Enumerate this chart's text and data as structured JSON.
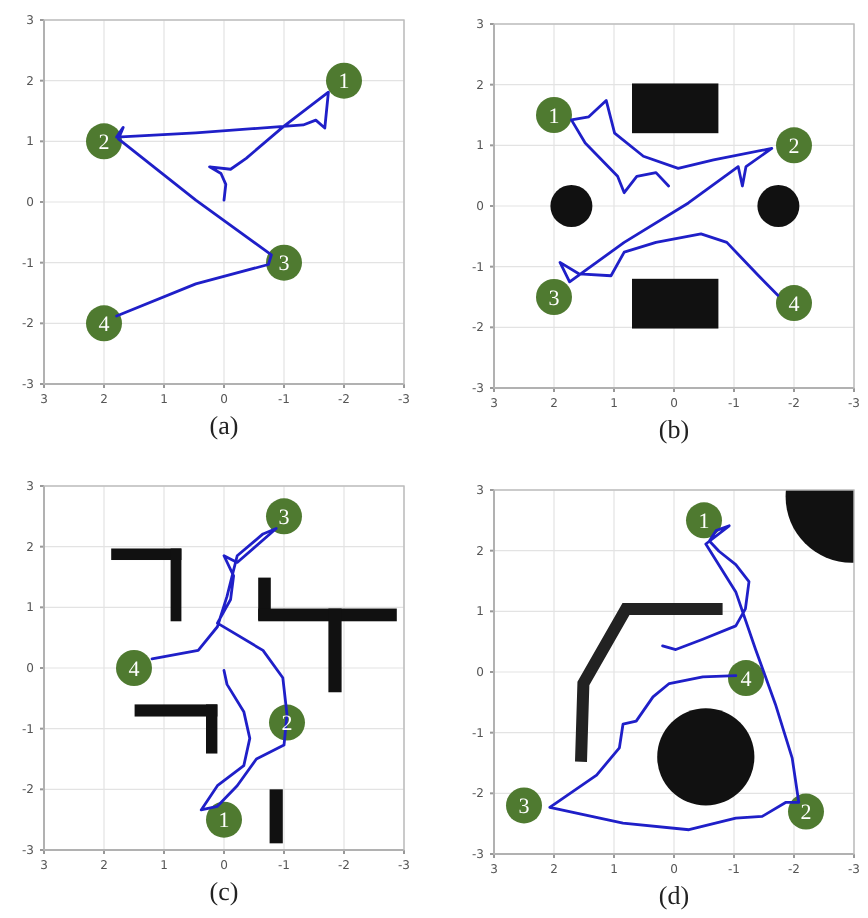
{
  "chart_data": [
    {
      "type": "line",
      "xlabel": "(a)",
      "xlim": [
        3,
        -3
      ],
      "ylim": [
        -3,
        3
      ],
      "xticks": [
        3,
        2,
        1,
        0,
        -1,
        -2,
        -3
      ],
      "yticks": [
        -3,
        -2,
        -1,
        0,
        1,
        2,
        3
      ],
      "grid": true,
      "series": [
        {
          "color": "#1f1fc8",
          "x": [
            0,
            -0.03,
            0.05,
            0.24,
            -0.11,
            -0.37,
            -1.0,
            -1.74,
            -1.68,
            -1.53,
            -1.32,
            0.47,
            1.79,
            1.68,
            1.76,
            0.47,
            -0.79,
            -0.74,
            0.47,
            1.79
          ],
          "values": [
            0.03,
            0.29,
            0.47,
            0.58,
            0.54,
            0.72,
            1.25,
            1.81,
            1.22,
            1.35,
            1.27,
            1.14,
            1.07,
            1.23,
            1.04,
            0.03,
            -0.87,
            -1.03,
            -1.35,
            -1.88
          ]
        },
        {
          "type": "scatter",
          "marker": "circle",
          "color": "#4f7a30",
          "x": [
            -2,
            2,
            -1,
            2
          ],
          "values": [
            2,
            1,
            -1,
            -2
          ]
        }
      ],
      "annotations": [
        {
          "text": "1",
          "x": -2,
          "y": 2
        },
        {
          "text": "2",
          "x": 2,
          "y": 1
        },
        {
          "text": "3",
          "x": -1,
          "y": -1
        },
        {
          "text": "4",
          "x": 2,
          "y": -2
        }
      ]
    },
    {
      "type": "line",
      "xlabel": "(b)",
      "xlim": [
        3,
        -3
      ],
      "ylim": [
        -3,
        3
      ],
      "xticks": [
        3,
        2,
        1,
        0,
        -1,
        -2,
        -3
      ],
      "yticks": [
        -3,
        -2,
        -1,
        0,
        1,
        2,
        3
      ],
      "grid": true,
      "series": [
        {
          "color": "#1f1fc8",
          "x": [
            0.09,
            0.3,
            0.62,
            0.83,
            0.94,
            1.48,
            1.71,
            1.42,
            1.13,
            0.99,
            0.51,
            -0.07,
            -0.66,
            -1.63,
            -1.2,
            -1.14,
            -1.07,
            -0.24,
            0.83,
            1.74,
            1.9,
            1.58,
            1.05,
            0.83,
            0.3,
            -0.45,
            -0.88,
            -1.41,
            -1.73
          ],
          "values": [
            0.33,
            0.55,
            0.49,
            0.22,
            0.49,
            1.04,
            1.42,
            1.47,
            1.74,
            1.2,
            0.82,
            0.62,
            0.76,
            0.95,
            0.65,
            0.33,
            0.65,
            0.05,
            -0.6,
            -1.25,
            -0.93,
            -1.12,
            -1.15,
            -0.76,
            -0.6,
            -0.46,
            -0.6,
            -1.15,
            -1.47
          ]
        },
        {
          "type": "scatter",
          "marker": "circle",
          "color": "#4f7a30",
          "x": [
            2,
            -2,
            2,
            -2
          ],
          "values": [
            1.5,
            1,
            -1.5,
            -1.6
          ]
        }
      ],
      "annotations": [
        {
          "text": "1",
          "x": 2,
          "y": 1.5
        },
        {
          "text": "2",
          "x": -2,
          "y": 1
        },
        {
          "text": "3",
          "x": 2,
          "y": -1.5
        },
        {
          "text": "4",
          "x": -2,
          "y": -1.6
        }
      ]
    },
    {
      "type": "line",
      "xlabel": "(c)",
      "xlim": [
        3,
        -3
      ],
      "ylim": [
        -3,
        3
      ],
      "xticks": [
        3,
        2,
        1,
        0,
        -1,
        -2,
        -3
      ],
      "yticks": [
        -3,
        -2,
        -1,
        0,
        1,
        2,
        3
      ],
      "grid": true,
      "series": [
        {
          "color": "#1f1fc8",
          "x": [
            0,
            -0.05,
            -0.33,
            -0.43,
            -0.33,
            0.11,
            0.38,
            0.11,
            -0.22,
            -0.54,
            -1.0,
            -1.05,
            -0.98,
            -0.65,
            0.11,
            -0.11,
            -0.16,
            0,
            -0.22,
            -0.87,
            -0.65,
            -0.22,
            -0.05,
            0.11,
            0.43,
            1.2
          ],
          "values": [
            -0.04,
            -0.27,
            -0.72,
            -1.16,
            -1.61,
            -1.94,
            -2.34,
            -2.28,
            -1.94,
            -1.5,
            -1.27,
            -0.77,
            -0.16,
            0.29,
            0.74,
            1.13,
            1.52,
            1.85,
            1.74,
            2.3,
            2.21,
            1.85,
            1.18,
            0.68,
            0.29,
            0.15
          ]
        },
        {
          "type": "scatter",
          "marker": "circle",
          "color": "#4f7a30",
          "x": [
            0,
            -1.05,
            -1,
            1.5
          ],
          "values": [
            -2.5,
            -0.9,
            2.5,
            0
          ]
        }
      ],
      "annotations": [
        {
          "text": "1",
          "x": 0,
          "y": -2.5
        },
        {
          "text": "2",
          "x": -1.05,
          "y": -0.9
        },
        {
          "text": "3",
          "x": -1,
          "y": 2.5
        },
        {
          "text": "4",
          "x": 1.5,
          "y": 0
        }
      ]
    },
    {
      "type": "line",
      "xlabel": "(d)",
      "xlim": [
        3,
        -3
      ],
      "ylim": [
        -3,
        3
      ],
      "xticks": [
        3,
        2,
        1,
        0,
        -1,
        -2,
        -3
      ],
      "yticks": [
        -3,
        -2,
        -1,
        0,
        1,
        2,
        3
      ],
      "grid": true,
      "series": [
        {
          "color": "#1f1fc8",
          "x": [
            0.19,
            -0.03,
            -0.48,
            -1.03,
            -1.19,
            -1.25,
            -1.03,
            -0.75,
            -0.59,
            -0.7,
            -0.92,
            -0.53,
            -1.03,
            -1.36,
            -1.69,
            -1.97,
            -2.08,
            -1.86,
            -1.47,
            -1.03,
            -0.25,
            0.85,
            2.07,
            1.29,
            0.91,
            0.85,
            0.63,
            0.35,
            0.08,
            -0.48,
            -1.03
          ],
          "values": [
            0.43,
            0.37,
            0.54,
            0.76,
            1.04,
            1.49,
            1.77,
            1.99,
            2.16,
            2.33,
            2.41,
            2.11,
            1.32,
            0.37,
            -0.53,
            -1.42,
            -2.15,
            -2.15,
            -2.38,
            -2.41,
            -2.6,
            -2.49,
            -2.23,
            -1.7,
            -1.25,
            -0.86,
            -0.81,
            -0.41,
            -0.19,
            -0.08,
            -0.06
          ]
        },
        {
          "type": "scatter",
          "marker": "circle",
          "color": "#4f7a30",
          "x": [
            -0.5,
            -2.2,
            2.5,
            -1.2
          ],
          "values": [
            2.5,
            -2.3,
            -2.2,
            -0.1
          ]
        }
      ],
      "annotations": [
        {
          "text": "1",
          "x": -0.5,
          "y": 2.5
        },
        {
          "text": "2",
          "x": -2.2,
          "y": -2.3
        },
        {
          "text": "3",
          "x": 2.5,
          "y": -2.2
        },
        {
          "text": "4",
          "x": -1.2,
          "y": -0.1
        }
      ]
    }
  ]
}
